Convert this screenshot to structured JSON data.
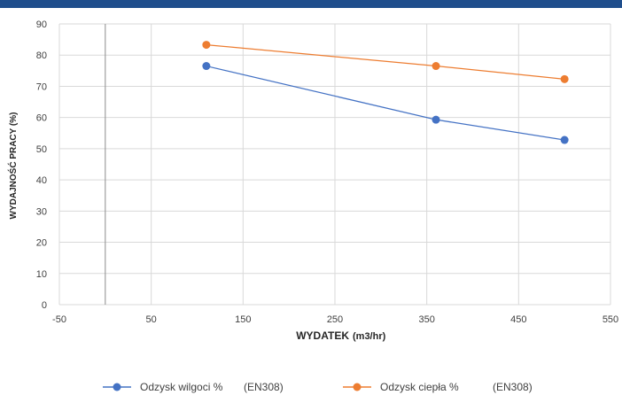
{
  "chart_data": {
    "type": "line",
    "xlabel": "WYDATEK",
    "xlabel_unit": "(m3/hr)",
    "ylabel": "WYDAJNOŚĆ PRACY (%)",
    "xlim": [
      -50,
      550
    ],
    "ylim": [
      0,
      90
    ],
    "x_ticks": [
      -50,
      50,
      150,
      250,
      350,
      450,
      550
    ],
    "y_ticks": [
      0,
      10,
      20,
      30,
      40,
      50,
      60,
      70,
      80,
      90
    ],
    "grid": true,
    "legend_position": "bottom",
    "series": [
      {
        "name": "Odzysk wilgoci %",
        "note": "(EN308)",
        "color": "#4472c4",
        "x": [
          110,
          360,
          500
        ],
        "y": [
          76.5,
          59.3,
          52.8
        ]
      },
      {
        "name": "Odzysk ciepła %",
        "note": "(EN308)",
        "color": "#ed7d31",
        "x": [
          110,
          360,
          500
        ],
        "y": [
          83.3,
          76.5,
          72.3
        ]
      }
    ]
  }
}
